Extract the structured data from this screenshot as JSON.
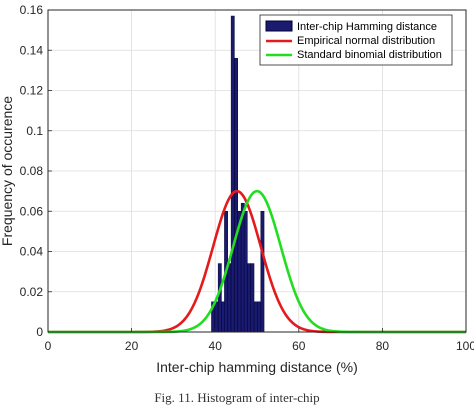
{
  "chart_data": {
    "type": "bar",
    "xlabel": "Inter-chip hamming distance (%)",
    "ylabel": "Frequency of occurence",
    "xlim": [
      0,
      100
    ],
    "ylim": [
      0,
      0.16
    ],
    "xticks": [
      "0",
      "20",
      "40",
      "60",
      "80",
      "100"
    ],
    "yticks": [
      "0",
      "0.02",
      "0.04",
      "0.06",
      "0.08",
      "0.1",
      "0.12",
      "0.14",
      "0.16"
    ],
    "grid": true,
    "legend_position": "top-right",
    "histogram": {
      "name": "Inter-chip Hamming distance",
      "color": "#1a1a6e",
      "bin_width": 0.78,
      "bins": [
        {
          "x": 39.5,
          "y": 0.015
        },
        {
          "x": 40.3,
          "y": 0.015
        },
        {
          "x": 41.1,
          "y": 0.034
        },
        {
          "x": 41.9,
          "y": 0.015
        },
        {
          "x": 42.6,
          "y": 0.06
        },
        {
          "x": 43.4,
          "y": 0.034
        },
        {
          "x": 44.2,
          "y": 0.157
        },
        {
          "x": 45.0,
          "y": 0.136
        },
        {
          "x": 45.8,
          "y": 0.06
        },
        {
          "x": 46.6,
          "y": 0.064
        },
        {
          "x": 47.3,
          "y": 0.06
        },
        {
          "x": 48.1,
          "y": 0.034
        },
        {
          "x": 48.9,
          "y": 0.034
        },
        {
          "x": 49.7,
          "y": 0.015
        },
        {
          "x": 50.5,
          "y": 0.015
        },
        {
          "x": 51.3,
          "y": 0.06
        }
      ]
    },
    "curves": [
      {
        "name": "Empirical normal distribution",
        "color": "#e41a1c",
        "mean": 45.2,
        "std": 5.7,
        "peak": 0.07
      },
      {
        "name": "Standard binomial distribution",
        "color": "#22dd22",
        "mean": 50.0,
        "std": 5.7,
        "peak": 0.07
      }
    ]
  },
  "caption": "Fig. 11. Histogram of inter-chip"
}
